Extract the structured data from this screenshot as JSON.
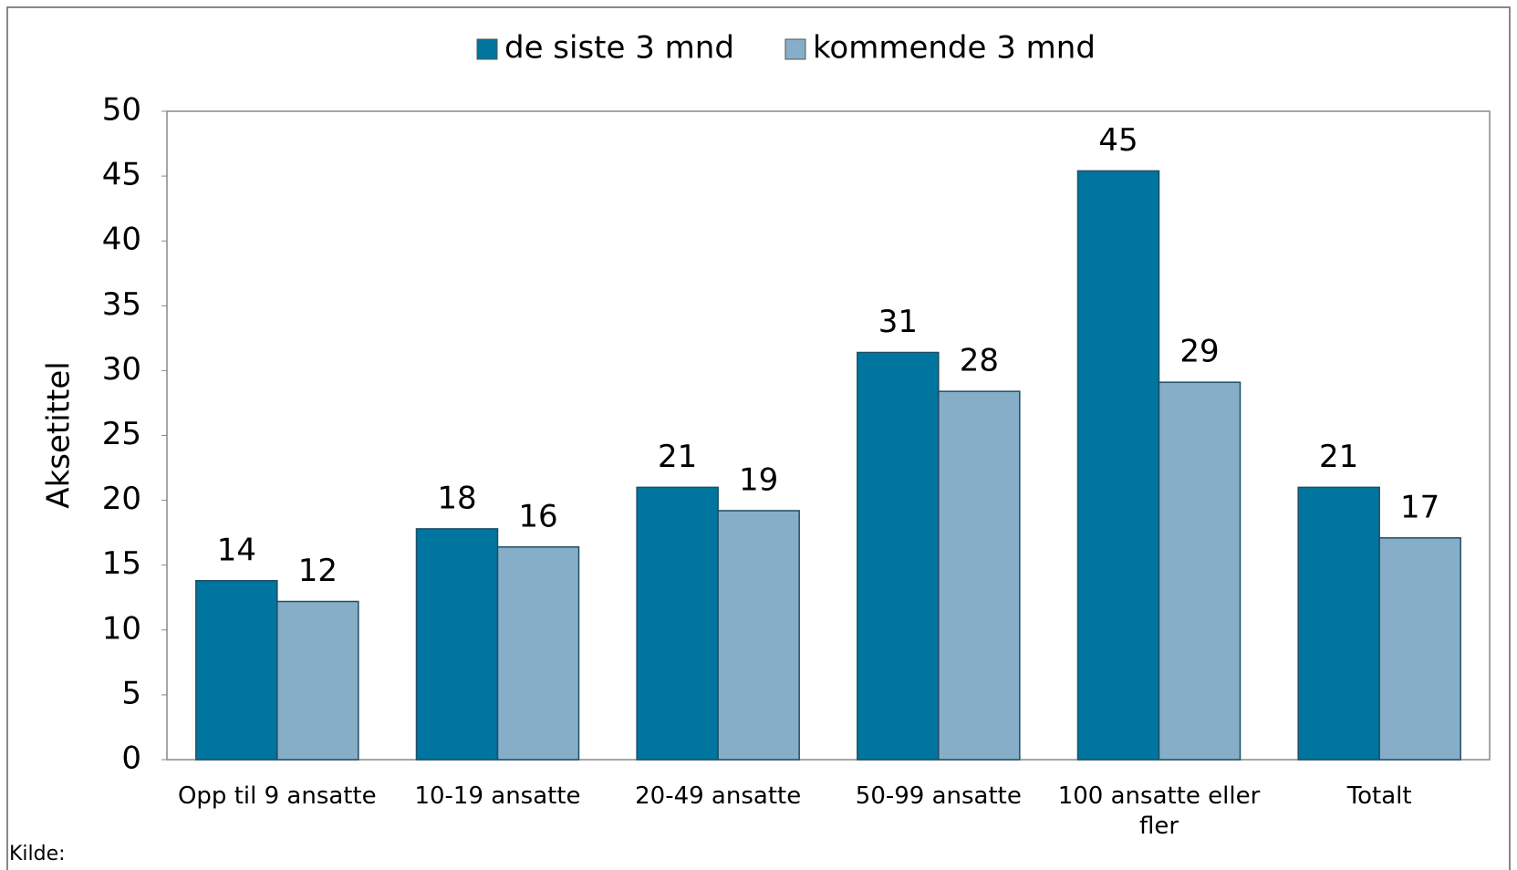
{
  "chart_data": {
    "type": "bar",
    "y_label": "Aksetittel",
    "source": "Kilde:",
    "categories": [
      "Opp til 9 ansatte",
      "10-19 ansatte",
      "20-49 ansatte",
      "50-99 ansatte",
      "100 ansatte eller fler",
      "Totalt"
    ],
    "series": [
      {
        "name": "de siste 3 mnd",
        "color": "#00759f",
        "values": [
          13.8,
          17.8,
          21.0,
          31.4,
          45.4,
          21.0
        ],
        "value_labels": [
          "14",
          "18",
          "21",
          "31",
          "45",
          "21"
        ]
      },
      {
        "name": "kommende 3 mnd",
        "color": "#86aec9",
        "values": [
          12.2,
          16.4,
          19.2,
          28.4,
          29.1,
          17.1
        ],
        "value_labels": [
          "12",
          "16",
          "19",
          "28",
          "29",
          "17"
        ]
      }
    ],
    "ylim": [
      0,
      50
    ],
    "yticks": [
      0,
      5,
      10,
      15,
      20,
      25,
      30,
      35,
      40,
      45,
      50
    ],
    "grid": false,
    "legend": "top"
  }
}
